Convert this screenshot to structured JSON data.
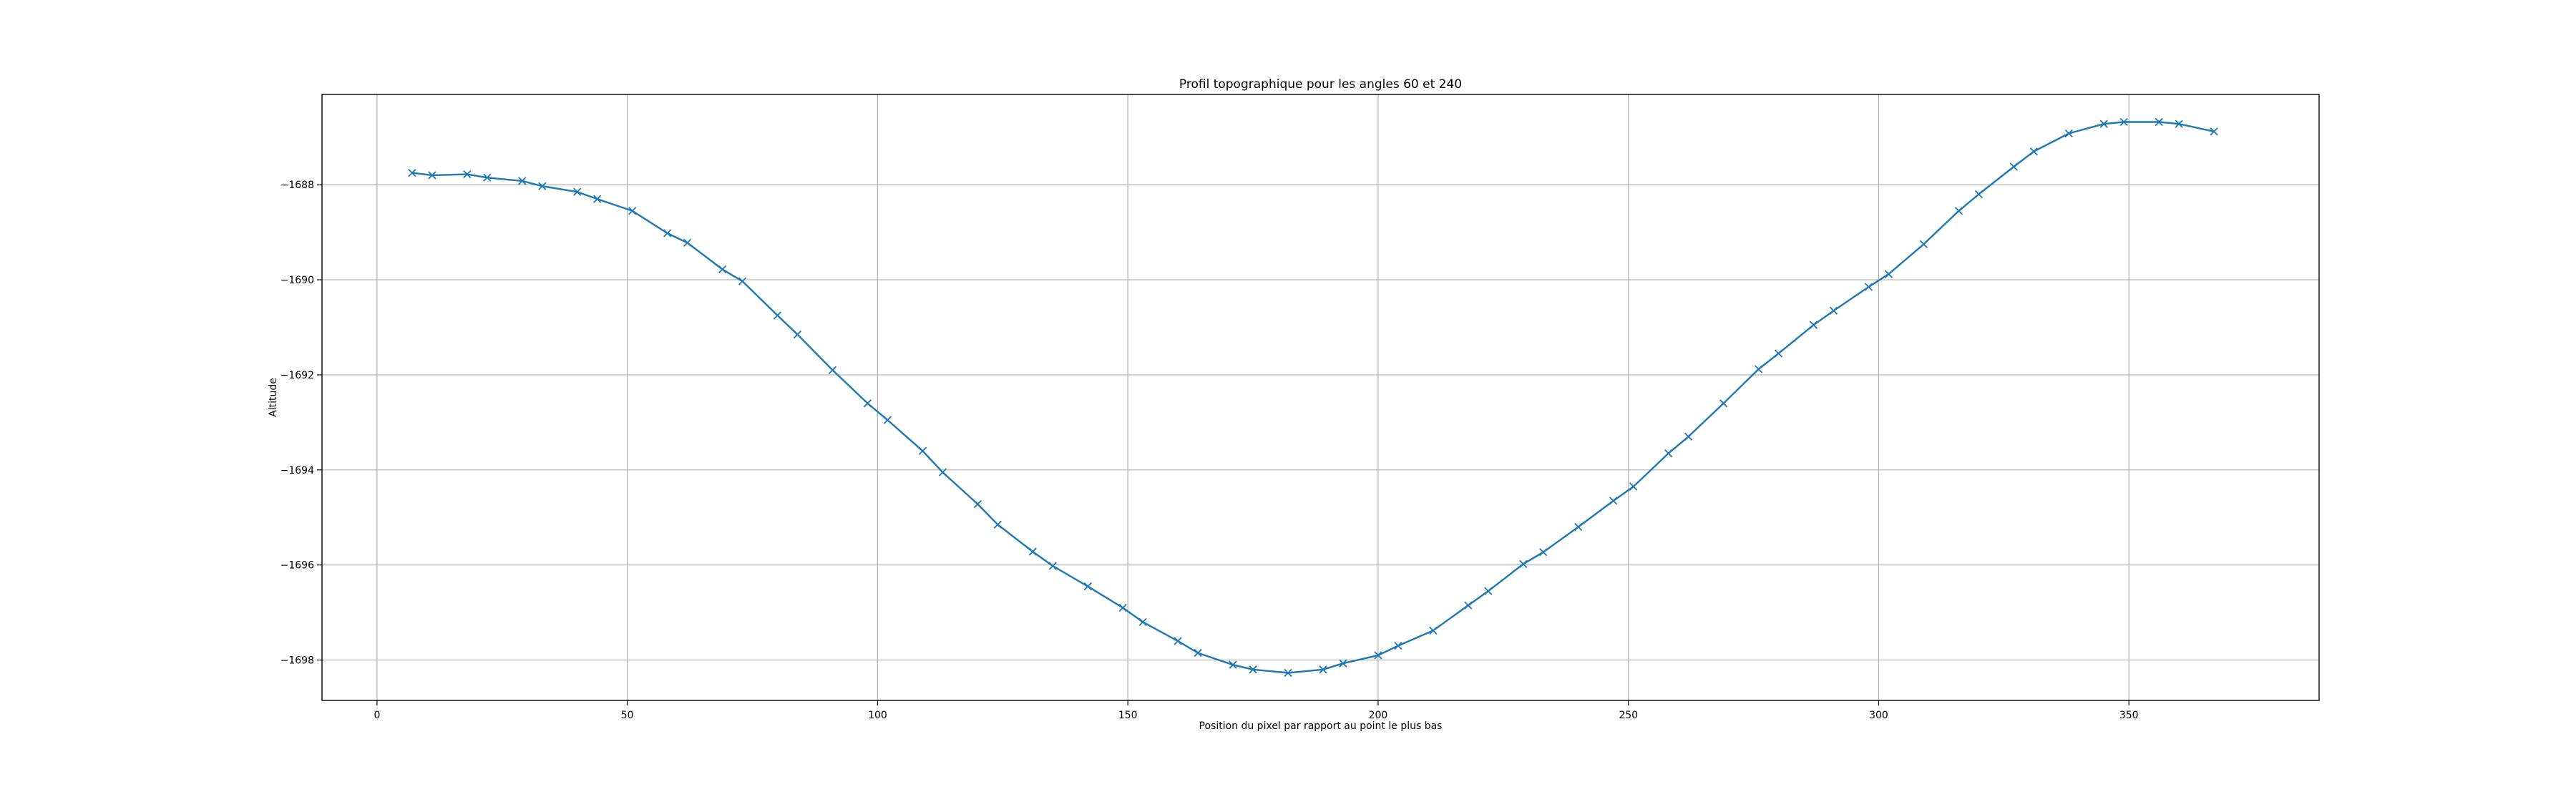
{
  "chart_data": {
    "type": "line",
    "title": "Profil topographique pour les angles 60 et 240",
    "xlabel": "Position du pixel par rapport au point le plus bas",
    "ylabel": "Altitude",
    "xlim": [
      -11,
      388
    ],
    "ylim": [
      -1698.85,
      -1686.1
    ],
    "xticks": [
      0,
      50,
      100,
      150,
      200,
      250,
      300,
      350
    ],
    "xtick_labels": [
      "0",
      "50",
      "100",
      "150",
      "200",
      "250",
      "300",
      "350"
    ],
    "yticks": [
      -1698,
      -1696,
      -1694,
      -1692,
      -1690,
      -1688
    ],
    "ytick_labels": [
      "−1698",
      "−1696",
      "−1694",
      "−1692",
      "−1690",
      "−1688"
    ],
    "grid": true,
    "marker": "x",
    "color": "#1f77b4",
    "series": [
      {
        "x": [
          7,
          11,
          18,
          22,
          29,
          33,
          40,
          44,
          51,
          58,
          62,
          69,
          73,
          80,
          84,
          91,
          98,
          102,
          109,
          113,
          120,
          124,
          131,
          135,
          142,
          149,
          153,
          160,
          164,
          171,
          175,
          182,
          189,
          193,
          200,
          204,
          211,
          218,
          222,
          229,
          233,
          240,
          247,
          251,
          258,
          262,
          269,
          276,
          280,
          287,
          291,
          298,
          302,
          309,
          316,
          320,
          327,
          331,
          338,
          345,
          349,
          356,
          360,
          367
        ],
        "y": [
          -1687.75,
          -1687.8,
          -1687.78,
          -1687.85,
          -1687.92,
          -1688.03,
          -1688.15,
          -1688.3,
          -1688.55,
          -1689.02,
          -1689.22,
          -1689.78,
          -1690.03,
          -1690.75,
          -1691.15,
          -1691.9,
          -1692.6,
          -1692.95,
          -1693.6,
          -1694.05,
          -1694.72,
          -1695.15,
          -1695.72,
          -1696.02,
          -1696.45,
          -1696.9,
          -1697.2,
          -1697.6,
          -1697.85,
          -1698.1,
          -1698.2,
          -1698.27,
          -1698.2,
          -1698.07,
          -1697.9,
          -1697.7,
          -1697.38,
          -1696.85,
          -1696.55,
          -1695.98,
          -1695.73,
          -1695.2,
          -1694.65,
          -1694.35,
          -1693.65,
          -1693.3,
          -1692.6,
          -1691.88,
          -1691.55,
          -1690.95,
          -1690.65,
          -1690.15,
          -1689.88,
          -1689.25,
          -1688.55,
          -1688.2,
          -1687.62,
          -1687.3,
          -1686.92,
          -1686.72,
          -1686.68,
          -1686.68,
          -1686.72,
          -1686.88
        ]
      }
    ]
  }
}
